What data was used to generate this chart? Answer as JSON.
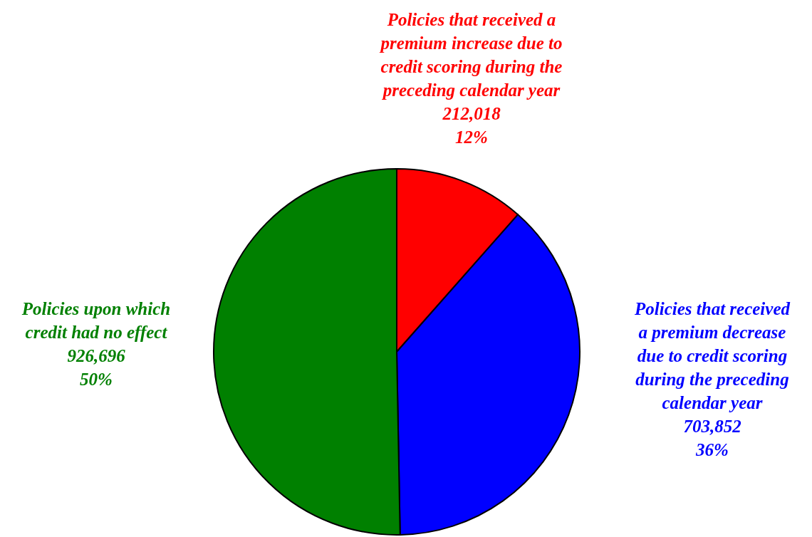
{
  "chart_data": {
    "type": "pie",
    "categories": [
      "Policies that received a\npremium increase due to\ncredit scoring during the\npreceding calendar year",
      "Policies that received\na premium decrease\ndue to credit scoring\nduring the preceding\ncalendar year",
      "Policies upon which\ncredit had no effect"
    ],
    "values": [
      212018,
      703852,
      926696
    ],
    "colors": [
      "#ff0000",
      "#0000ff",
      "#008000"
    ],
    "value_labels": [
      "212,018\n12%",
      "703,852\n36%",
      "926,696\n50%"
    ]
  }
}
